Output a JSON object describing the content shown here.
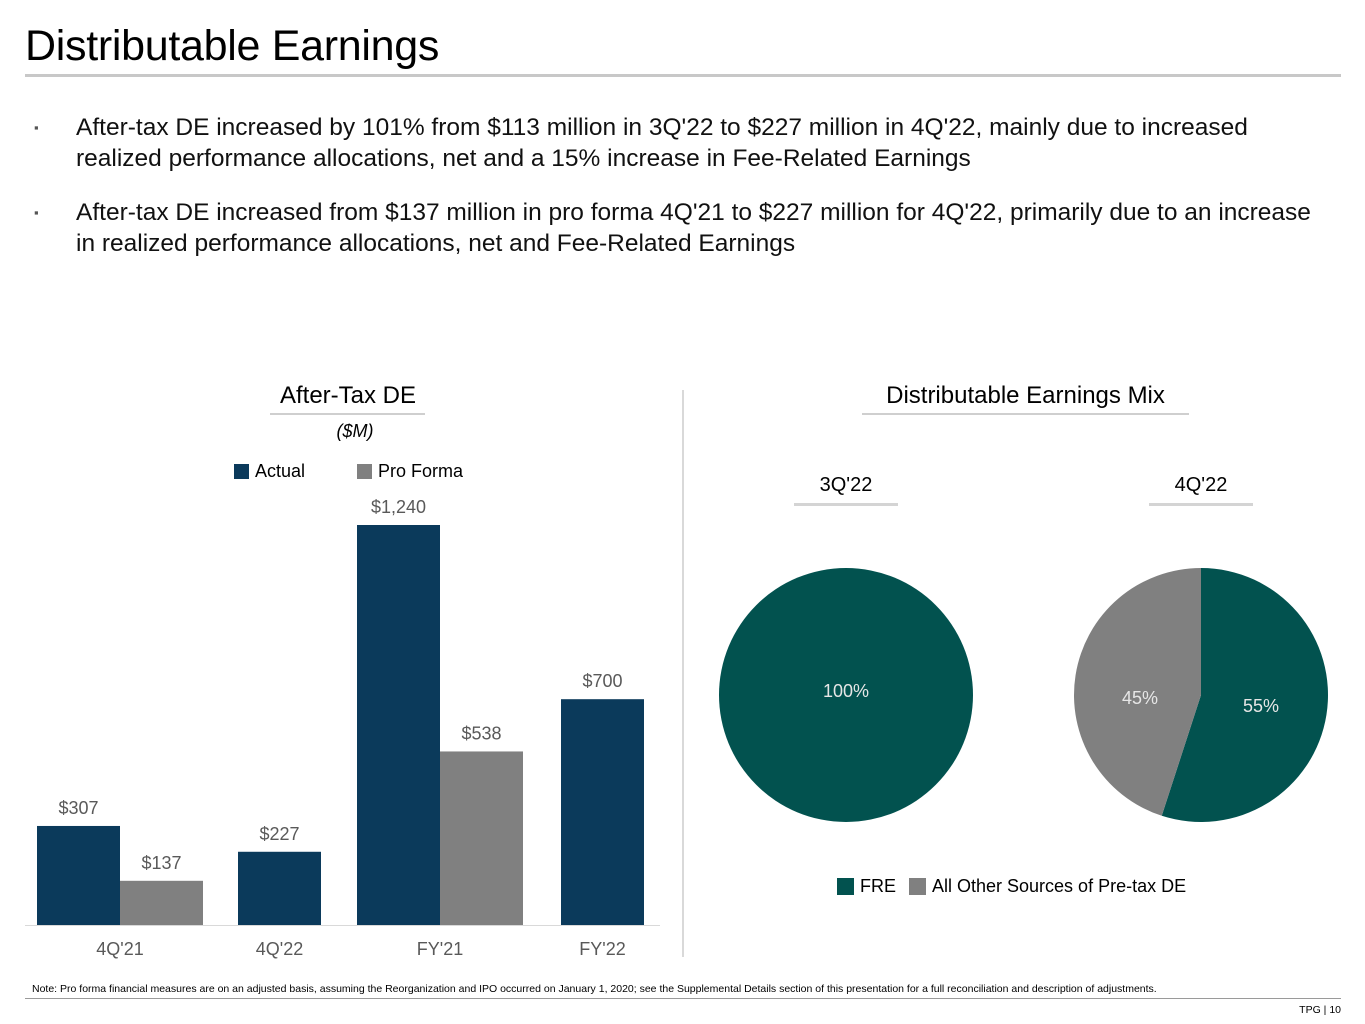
{
  "title": "Distributable Earnings",
  "bullets": [
    "After-tax DE increased by 101% from $113 million in 3Q'22 to $227 million in 4Q'22, mainly due to increased realized performance allocations, net and a 15% increase in Fee-Related Earnings",
    "After-tax DE increased from $137 million in pro forma 4Q'21 to $227 million for 4Q'22, primarily due to an increase in realized performance allocations, net and Fee-Related Earnings"
  ],
  "bullet_marker": "▪",
  "left_section": {
    "title": "After-Tax DE",
    "units": "($M)"
  },
  "right_section": {
    "title": "Distributable Earnings Mix"
  },
  "colors": {
    "actual": "#0b3a5b",
    "pro_forma": "#808080",
    "fre": "#02524f",
    "other": "#808080"
  },
  "chart_data": [
    {
      "type": "bar",
      "title": "After-Tax DE",
      "ylabel": "($M)",
      "categories": [
        "4Q'21",
        "4Q'22",
        "FY'21",
        "FY'22"
      ],
      "series": [
        {
          "name": "Actual",
          "values": [
            307,
            227,
            1240,
            700
          ],
          "labels": [
            "$307",
            "$227",
            "$1,240",
            "$700"
          ]
        },
        {
          "name": "Pro Forma",
          "values": [
            137,
            null,
            538,
            null
          ],
          "labels": [
            "$137",
            "",
            "$538",
            ""
          ]
        }
      ],
      "ylim": [
        0,
        1240
      ],
      "legend": "top-center"
    },
    {
      "type": "pie",
      "title": "3Q'22",
      "slices": [
        {
          "name": "FRE",
          "value": 100,
          "label": "100%"
        }
      ]
    },
    {
      "type": "pie",
      "title": "4Q'22",
      "slices": [
        {
          "name": "FRE",
          "value": 55,
          "label": "55%"
        },
        {
          "name": "All Other Sources of Pre-tax DE",
          "value": 45,
          "label": "45%"
        }
      ]
    }
  ],
  "pie_legend": [
    "FRE",
    "All Other Sources of Pre-tax DE"
  ],
  "footnote": "Note: Pro forma financial measures are on an adjusted basis, assuming the Reorganization and IPO occurred on January 1, 2020; see the Supplemental Details section of this presentation for a full reconciliation and description of adjustments.",
  "page_number": "TPG | 10"
}
